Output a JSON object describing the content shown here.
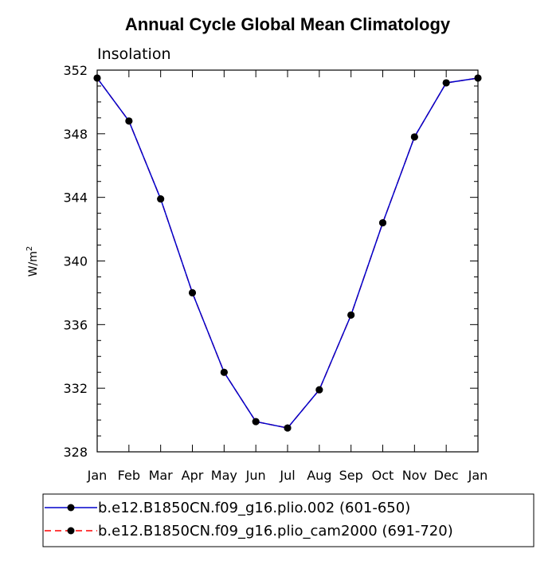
{
  "chart_data": {
    "type": "line",
    "title": "Annual Cycle Global Mean Climatology",
    "subtitle": "Insolation",
    "xlabel": "",
    "ylabel_base": "W/m",
    "ylabel_sup": "2",
    "categories": [
      "Jan",
      "Feb",
      "Mar",
      "Apr",
      "May",
      "Jun",
      "Jul",
      "Aug",
      "Sep",
      "Oct",
      "Nov",
      "Dec",
      "Jan"
    ],
    "ylim": [
      328,
      352
    ],
    "y_ticks": [
      "328",
      "332",
      "336",
      "340",
      "344",
      "348",
      "352"
    ],
    "grid": false,
    "legend_position": "bottom",
    "series": [
      {
        "name": "b.e12.B1850CN.f09_g16.plio.002 (601-650)",
        "color": "#0000cc",
        "line_style": "solid",
        "marker": "filled-circle",
        "values": [
          351.5,
          348.8,
          343.9,
          338.0,
          333.0,
          329.9,
          329.5,
          331.9,
          336.6,
          342.4,
          347.8,
          351.2,
          351.5
        ]
      },
      {
        "name": "b.e12.B1850CN.f09_g16.plio_cam2000 (691-720)",
        "color": "#ff0000",
        "line_style": "dashed",
        "marker": "filled-circle",
        "values": [
          351.5,
          348.8,
          343.9,
          338.0,
          333.0,
          329.9,
          329.5,
          331.9,
          336.6,
          342.4,
          347.8,
          351.2,
          351.5
        ]
      }
    ]
  }
}
